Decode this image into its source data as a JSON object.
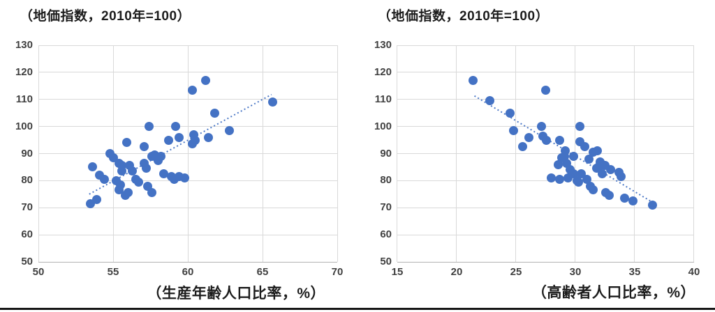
{
  "figure": {
    "background": "#ffffff",
    "bottom_rule_color": "#161616",
    "gridline_color": "#d9d9d9"
  },
  "chart_data": [
    {
      "type": "scatter",
      "title": "（地価指数，2010年=100）",
      "xlabel": "（生産年齢人口比率，%）",
      "ylabel": "",
      "xlim": [
        50,
        70
      ],
      "ylim": [
        50,
        130
      ],
      "xticks": [
        50,
        55,
        60,
        65,
        70
      ],
      "yticks": [
        50,
        60,
        70,
        80,
        90,
        100,
        110,
        120,
        130
      ],
      "grid": true,
      "legend": "none",
      "marker_color": "#4472C4",
      "trendline": {
        "style": "dotted",
        "color": "#4472C4",
        "x1": 53.4,
        "y1": 75.0,
        "x2": 65.6,
        "y2": 111.8
      },
      "points": [
        [
          53.5,
          71.5
        ],
        [
          53.9,
          73
        ],
        [
          53.6,
          85
        ],
        [
          54.1,
          82
        ],
        [
          54.4,
          80.5
        ],
        [
          54.8,
          90
        ],
        [
          55.0,
          88.5
        ],
        [
          55.4,
          86.5
        ],
        [
          55.6,
          85.5
        ],
        [
          55.6,
          83.5
        ],
        [
          55.2,
          80
        ],
        [
          55.5,
          78.5
        ],
        [
          55.4,
          76.5
        ],
        [
          55.8,
          74.5
        ],
        [
          56.0,
          75.5
        ],
        [
          56.1,
          85.5
        ],
        [
          56.3,
          83.5
        ],
        [
          56.5,
          80.5
        ],
        [
          56.7,
          79.5
        ],
        [
          57.1,
          86.5
        ],
        [
          57.2,
          84.5
        ],
        [
          57.4,
          100
        ],
        [
          57.1,
          92.5
        ],
        [
          55.9,
          94
        ],
        [
          57.6,
          89
        ],
        [
          57.8,
          89.5
        ],
        [
          57.9,
          88.5
        ],
        [
          58.0,
          87.5
        ],
        [
          58.2,
          89
        ],
        [
          57.3,
          78
        ],
        [
          57.6,
          75.5
        ],
        [
          58.4,
          82.5
        ],
        [
          58.7,
          95
        ],
        [
          58.9,
          81.5
        ],
        [
          59.1,
          80.5
        ],
        [
          59.2,
          100
        ],
        [
          59.4,
          96
        ],
        [
          59.4,
          81.5
        ],
        [
          59.8,
          81
        ],
        [
          60.3,
          113.5
        ],
        [
          60.4,
          97
        ],
        [
          60.5,
          95
        ],
        [
          60.3,
          93.5
        ],
        [
          61.4,
          96
        ],
        [
          61.2,
          117
        ],
        [
          61.8,
          105
        ],
        [
          62.8,
          98.5
        ],
        [
          65.7,
          109
        ]
      ]
    },
    {
      "type": "scatter",
      "title": "（地価指数，2010年=100）",
      "xlabel": "（高齢者人口比率，%）",
      "ylabel": "",
      "xlim": [
        15,
        40
      ],
      "ylim": [
        50,
        130
      ],
      "xticks": [
        15,
        20,
        25,
        30,
        35,
        40
      ],
      "yticks": [
        50,
        60,
        70,
        80,
        90,
        100,
        110,
        120,
        130
      ],
      "grid": true,
      "legend": "none",
      "marker_color": "#4472C4",
      "trendline": {
        "style": "dotted",
        "color": "#4472C4",
        "x1": 21.5,
        "y1": 111.3,
        "x2": 36.35,
        "y2": 72.4
      },
      "points": [
        [
          21.4,
          117
        ],
        [
          22.8,
          109.5
        ],
        [
          27.5,
          113.5
        ],
        [
          24.5,
          105
        ],
        [
          24.8,
          98.5
        ],
        [
          26.1,
          96
        ],
        [
          25.6,
          92.5
        ],
        [
          27.2,
          100
        ],
        [
          27.3,
          96.5
        ],
        [
          27.6,
          95
        ],
        [
          28.7,
          95
        ],
        [
          28.0,
          81
        ],
        [
          28.6,
          86
        ],
        [
          28.7,
          80.5
        ],
        [
          29.1,
          89
        ],
        [
          29.2,
          91
        ],
        [
          29.3,
          86.5
        ],
        [
          29.4,
          81
        ],
        [
          29.6,
          84
        ],
        [
          29.9,
          89
        ],
        [
          30.2,
          80
        ],
        [
          30.4,
          100
        ],
        [
          30.4,
          94.5
        ],
        [
          30.5,
          82.5
        ],
        [
          30.8,
          92.5
        ],
        [
          30.3,
          79.5
        ],
        [
          31.2,
          88
        ],
        [
          31.3,
          78
        ],
        [
          31.5,
          90.5
        ],
        [
          31.5,
          76.5
        ],
        [
          31.8,
          84.5
        ],
        [
          31.9,
          91
        ],
        [
          32.1,
          87
        ],
        [
          32.3,
          82.5
        ],
        [
          32.5,
          85.5
        ],
        [
          32.6,
          75.5
        ],
        [
          32.9,
          74.5
        ],
        [
          33.7,
          83
        ],
        [
          33.9,
          81.5
        ],
        [
          34.2,
          73.5
        ],
        [
          34.9,
          72.5
        ],
        [
          36.5,
          71
        ],
        [
          29.9,
          82.5
        ],
        [
          32.0,
          85
        ],
        [
          33.0,
          84
        ],
        [
          28.9,
          88.5
        ],
        [
          31.0,
          80.5
        ]
      ]
    }
  ]
}
